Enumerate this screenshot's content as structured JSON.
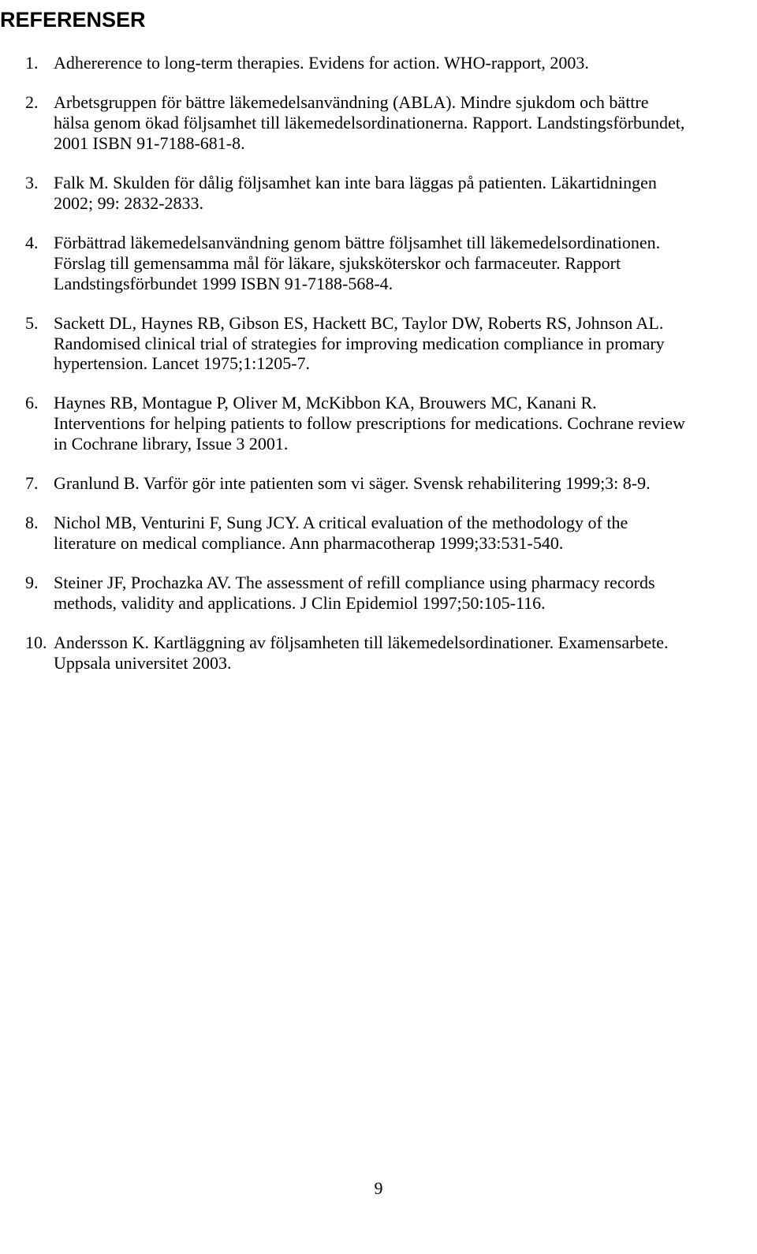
{
  "heading": "REFERENSER",
  "page_number": "9",
  "refs": [
    {
      "num": "1.",
      "text": "Adhererence to long-term therapies. Evidens for action. WHO-rapport, 2003."
    },
    {
      "num": "2.",
      "text": "Arbetsgruppen för bättre läkemedelsanvändning (ABLA). Mindre sjukdom och bättre hälsa genom ökad följsamhet till läkemedelsordinationerna. Rapport. Landstingsförbundet, 2001 ISBN 91-7188-681-8."
    },
    {
      "num": "3.",
      "text": "Falk M. Skulden för dålig följsamhet kan inte bara läggas på patienten. Läkartidningen 2002; 99: 2832-2833."
    },
    {
      "num": "4.",
      "text": "Förbättrad läkemedelsanvändning genom bättre följsamhet till läkemedelsordinationen. Förslag till gemensamma mål för läkare, sjuksköterskor och farmaceuter. Rapport Landstingsförbundet 1999  ISBN 91-7188-568-4."
    },
    {
      "num": "5.",
      "text": "Sackett DL, Haynes RB, Gibson ES, Hackett BC, Taylor DW, Roberts RS, Johnson AL. Randomised clinical trial of strategies for improving medication compliance in promary hypertension. Lancet 1975;1:1205-7."
    },
    {
      "num": "6.",
      "text": "Haynes RB, Montague P, Oliver M, McKibbon KA, Brouwers MC, Kanani R. Interventions for helping patients to follow prescriptions for medications. Cochrane review in Cochrane library, Issue 3 2001."
    },
    {
      "num": "7.",
      "text": "Granlund B. Varför gör inte patienten som vi säger. Svensk rehabilitering 1999;3: 8-9."
    },
    {
      "num": "8.",
      "text": "Nichol MB, Venturini F, Sung JCY. A critical evaluation of the methodology of the literature on medical compliance. Ann pharmacotherap 1999;33:531-540."
    },
    {
      "num": "9.",
      "text": "Steiner JF, Prochazka AV. The assessment of refill compliance using pharmacy records methods, validity and applications. J Clin Epidemiol 1997;50:105-116."
    },
    {
      "num": "10.",
      "text": "Andersson K. Kartläggning av följsamheten till läkemedelsordinationer. Examensarbete. Uppsala universitet 2003."
    }
  ]
}
